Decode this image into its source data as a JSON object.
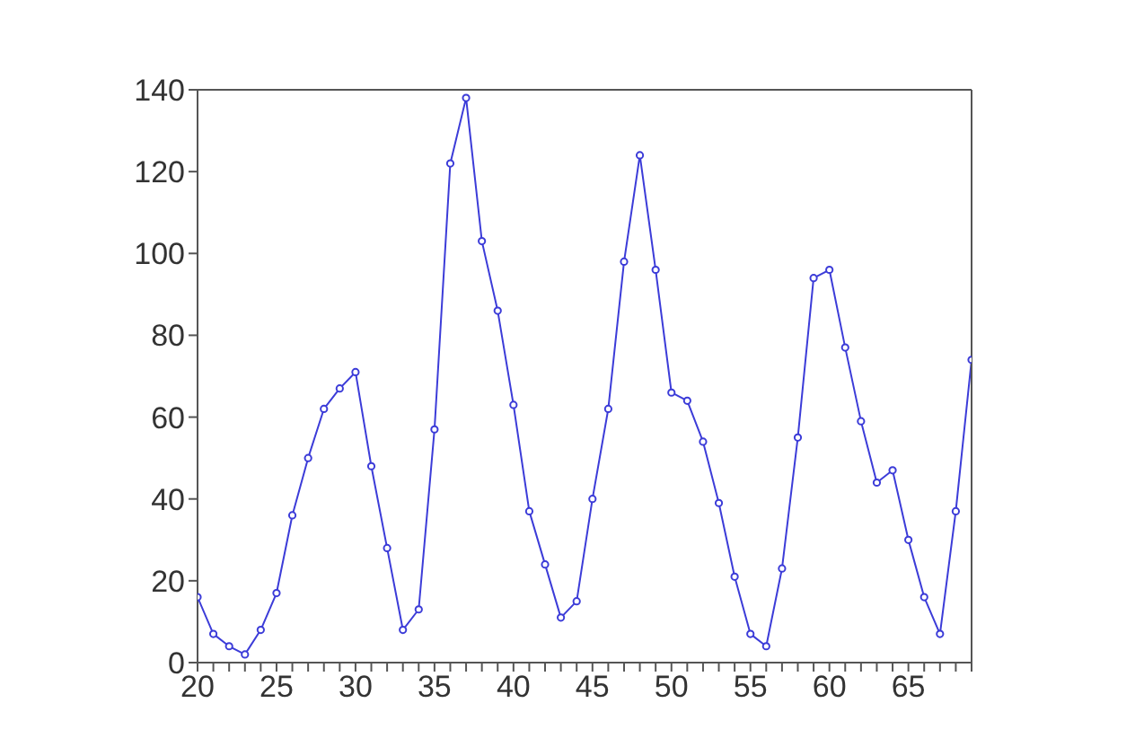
{
  "chart_data": {
    "type": "line",
    "x": [
      20,
      21,
      22,
      23,
      24,
      25,
      26,
      27,
      28,
      29,
      30,
      31,
      32,
      33,
      34,
      35,
      36,
      37,
      38,
      39,
      40,
      41,
      42,
      43,
      44,
      45,
      46,
      47,
      48,
      49,
      50,
      51,
      52,
      53,
      54,
      55,
      56,
      57,
      58,
      59,
      60,
      61,
      62,
      63,
      64,
      65,
      66,
      67,
      68,
      69
    ],
    "series": [
      {
        "color": "#3c3cd8",
        "values": [
          16,
          7,
          4,
          2,
          8,
          17,
          36,
          50,
          62,
          67,
          71,
          48,
          28,
          8,
          13,
          57,
          122,
          138,
          103,
          86,
          63,
          37,
          24,
          11,
          15,
          40,
          62,
          98,
          124,
          96,
          66,
          64,
          54,
          39,
          21,
          7,
          4,
          23,
          55,
          94,
          96,
          77,
          59,
          44,
          47,
          30,
          16,
          7,
          37,
          74
        ]
      }
    ],
    "xlim": [
      20,
      69
    ],
    "xticks": [
      20,
      {
        "value": 21,
        "label": null
      },
      {
        "value": 22,
        "label": null
      },
      {
        "value": 23,
        "label": null
      },
      {
        "value": 24,
        "label": null
      },
      25,
      {
        "value": 26,
        "label": null
      },
      {
        "value": 27,
        "label": null
      },
      {
        "value": 28,
        "label": null
      },
      {
        "value": 29,
        "label": null
      },
      30,
      {
        "value": 31,
        "label": null
      },
      {
        "value": 32,
        "label": null
      },
      {
        "value": 33,
        "label": null
      },
      {
        "value": 34,
        "label": null
      },
      35,
      {
        "value": 36,
        "label": null
      },
      {
        "value": 37,
        "label": null
      },
      {
        "value": 38,
        "label": null
      },
      {
        "value": 39,
        "label": null
      },
      40,
      {
        "value": 41,
        "label": null
      },
      {
        "value": 42,
        "label": null
      },
      {
        "value": 43,
        "label": null
      },
      {
        "value": 44,
        "label": null
      },
      45,
      {
        "value": 46,
        "label": null
      },
      {
        "value": 47,
        "label": null
      },
      {
        "value": 48,
        "label": null
      },
      {
        "value": 49,
        "label": null
      },
      50,
      {
        "value": 51,
        "label": null
      },
      {
        "value": 52,
        "label": null
      },
      {
        "value": 53,
        "label": null
      },
      {
        "value": 54,
        "label": null
      },
      55,
      {
        "value": 56,
        "label": null
      },
      {
        "value": 57,
        "label": null
      },
      {
        "value": 58,
        "label": null
      },
      {
        "value": 59,
        "label": null
      },
      60,
      {
        "value": 61,
        "label": null
      },
      {
        "value": 62,
        "label": null
      },
      {
        "value": 63,
        "label": null
      },
      {
        "value": 64,
        "label": null
      },
      65,
      {
        "value": 66,
        "label": null
      },
      {
        "value": 67,
        "label": null
      },
      {
        "value": 68,
        "label": null
      },
      {
        "value": 69,
        "label": null
      }
    ],
    "ylim": [
      0,
      140
    ],
    "yticks": [
      0,
      20,
      40,
      60,
      80,
      100,
      120,
      140
    ],
    "marker": "circle"
  }
}
